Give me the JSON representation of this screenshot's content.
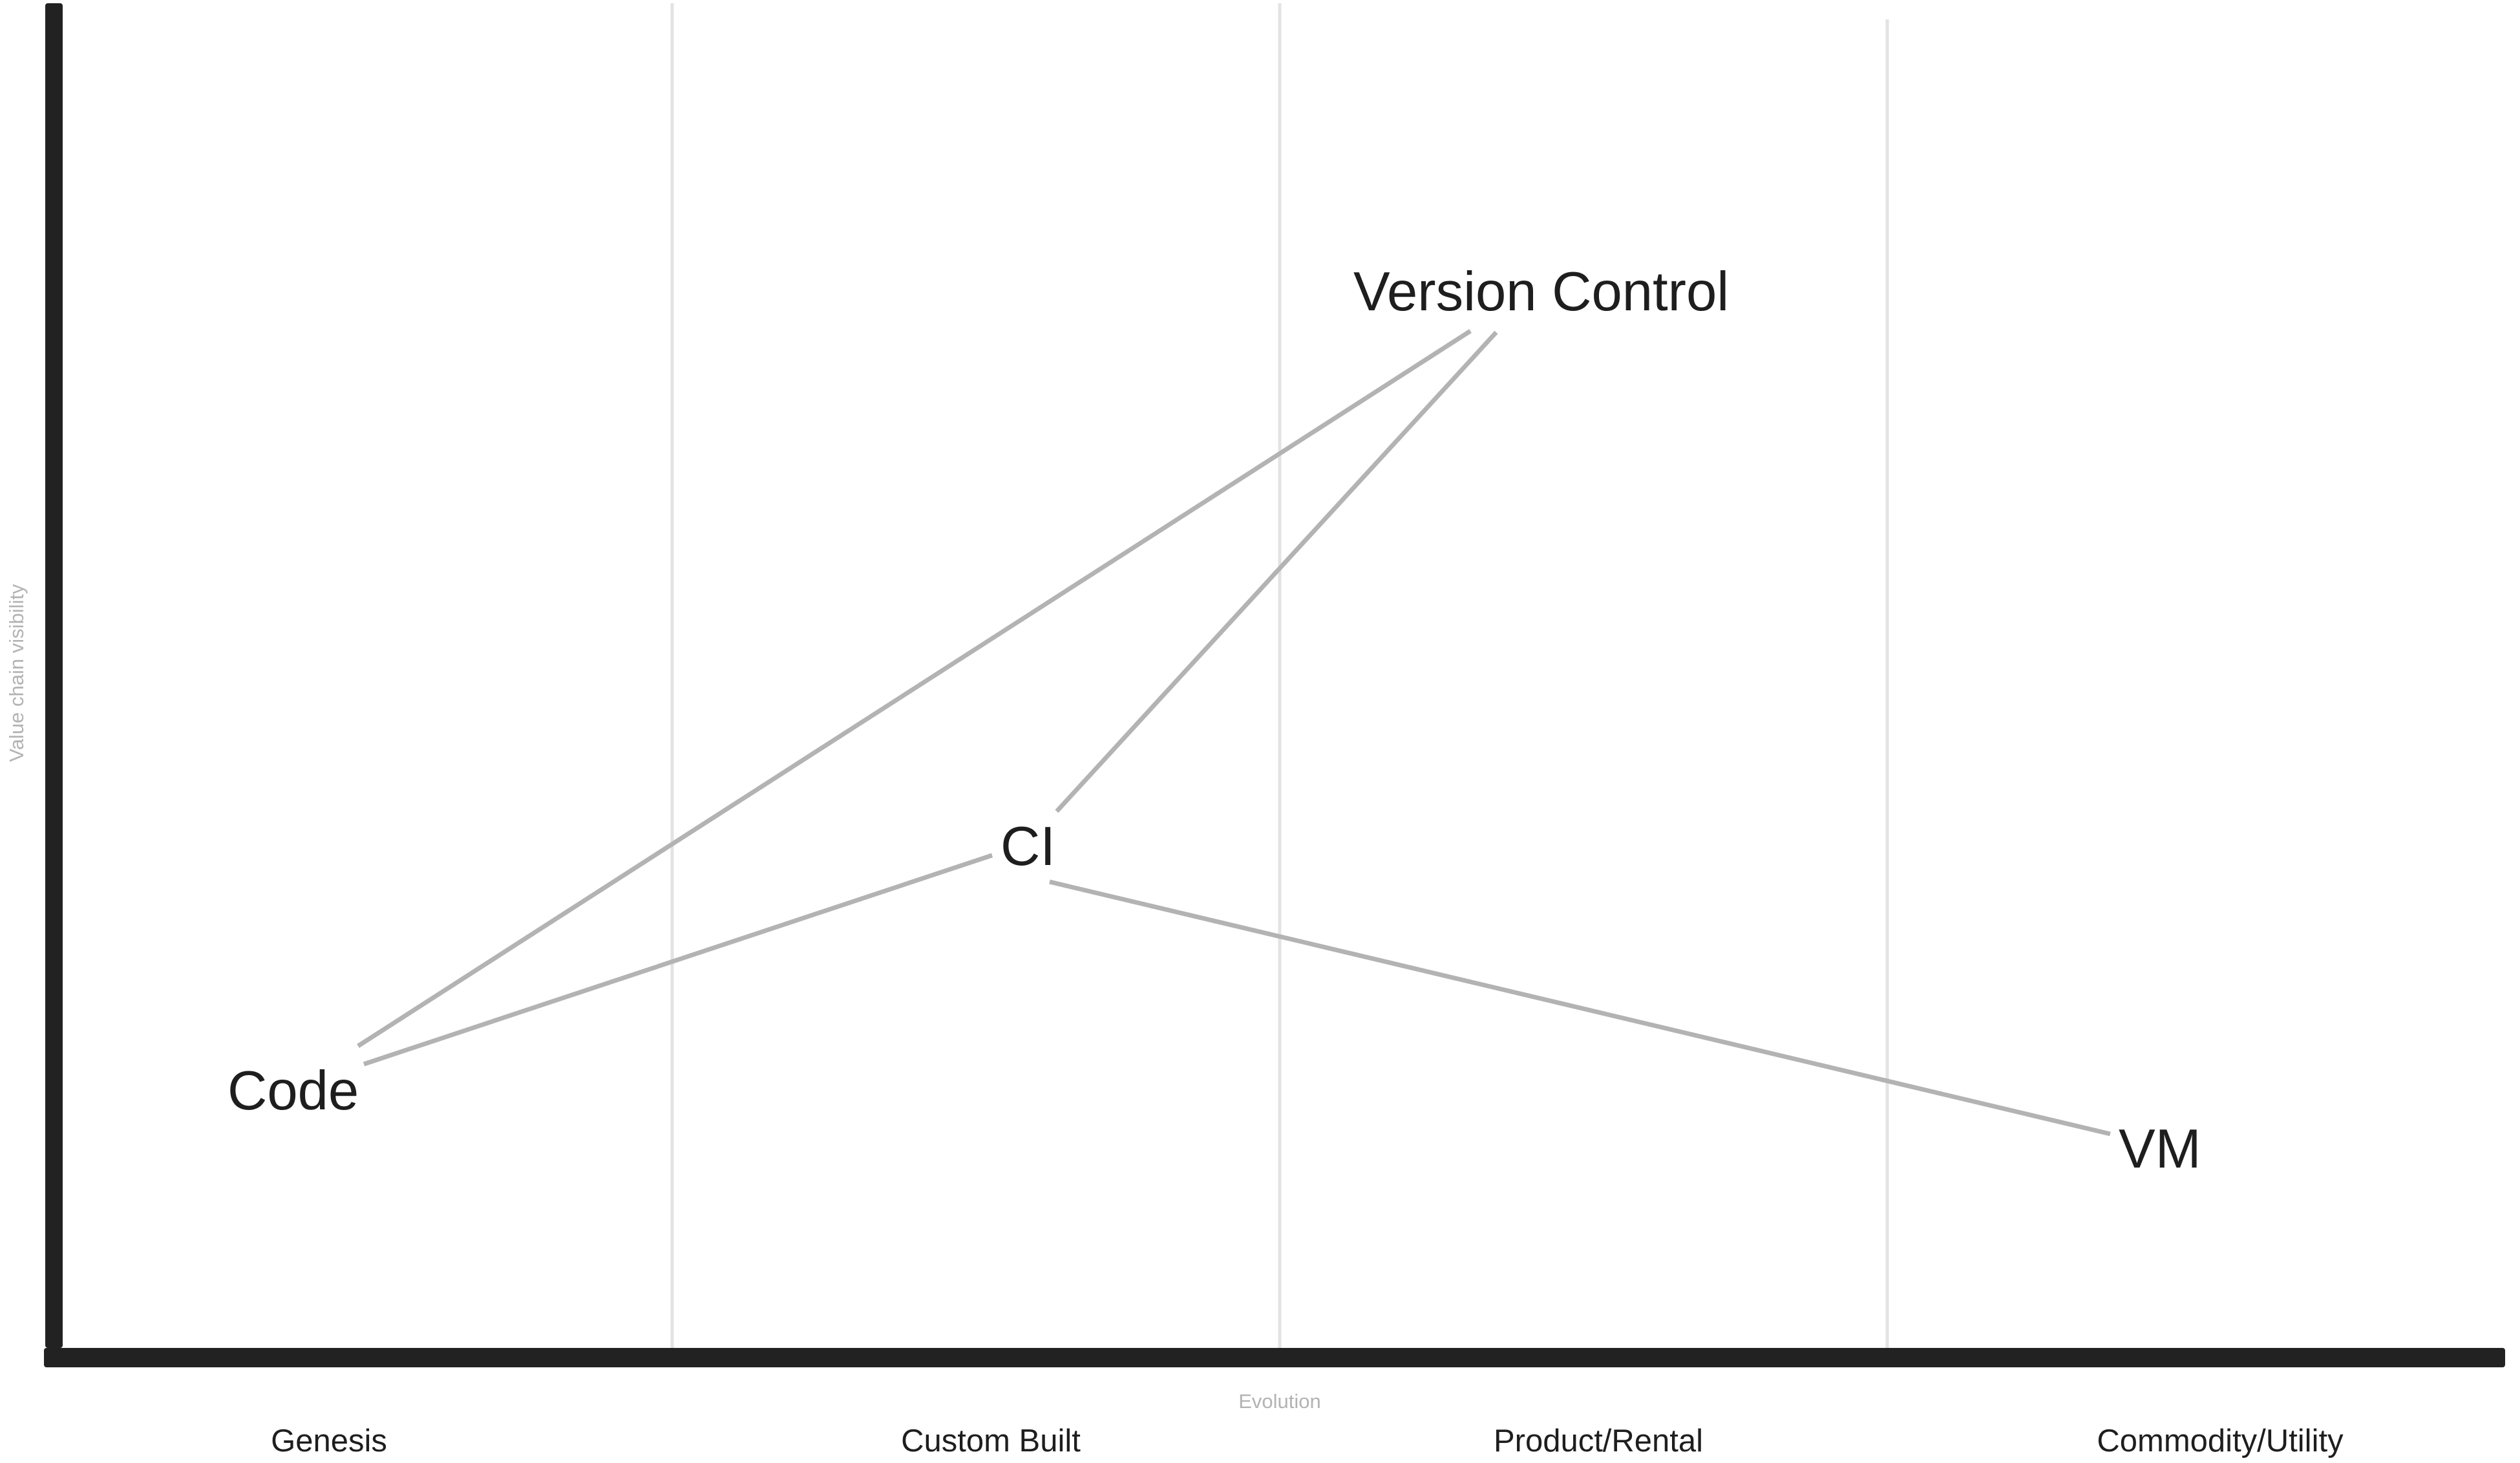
{
  "map": {
    "axes": {
      "y_title": "Value chain visibility",
      "x_title": "Evolution"
    },
    "stages": [
      {
        "label": "Genesis"
      },
      {
        "label": "Custom Built"
      },
      {
        "label": "Product/Rental"
      },
      {
        "label": "Commodity/Utility"
      }
    ],
    "components": [
      {
        "id": "version-control",
        "label": "Version Control"
      },
      {
        "id": "ci",
        "label": "CI"
      },
      {
        "id": "code",
        "label": "Code"
      },
      {
        "id": "vm",
        "label": "VM"
      }
    ],
    "links": [
      {
        "from": "Code",
        "to": "Version Control"
      },
      {
        "from": "Code",
        "to": "CI"
      },
      {
        "from": "CI",
        "to": "Version Control"
      },
      {
        "from": "CI",
        "to": "VM"
      }
    ],
    "colors": {
      "axis": "#222222",
      "divider": "#e3e3e3",
      "link": "#b3b3b3",
      "text": "#1e1e1e",
      "axis_title": "#b3b3b3"
    }
  }
}
